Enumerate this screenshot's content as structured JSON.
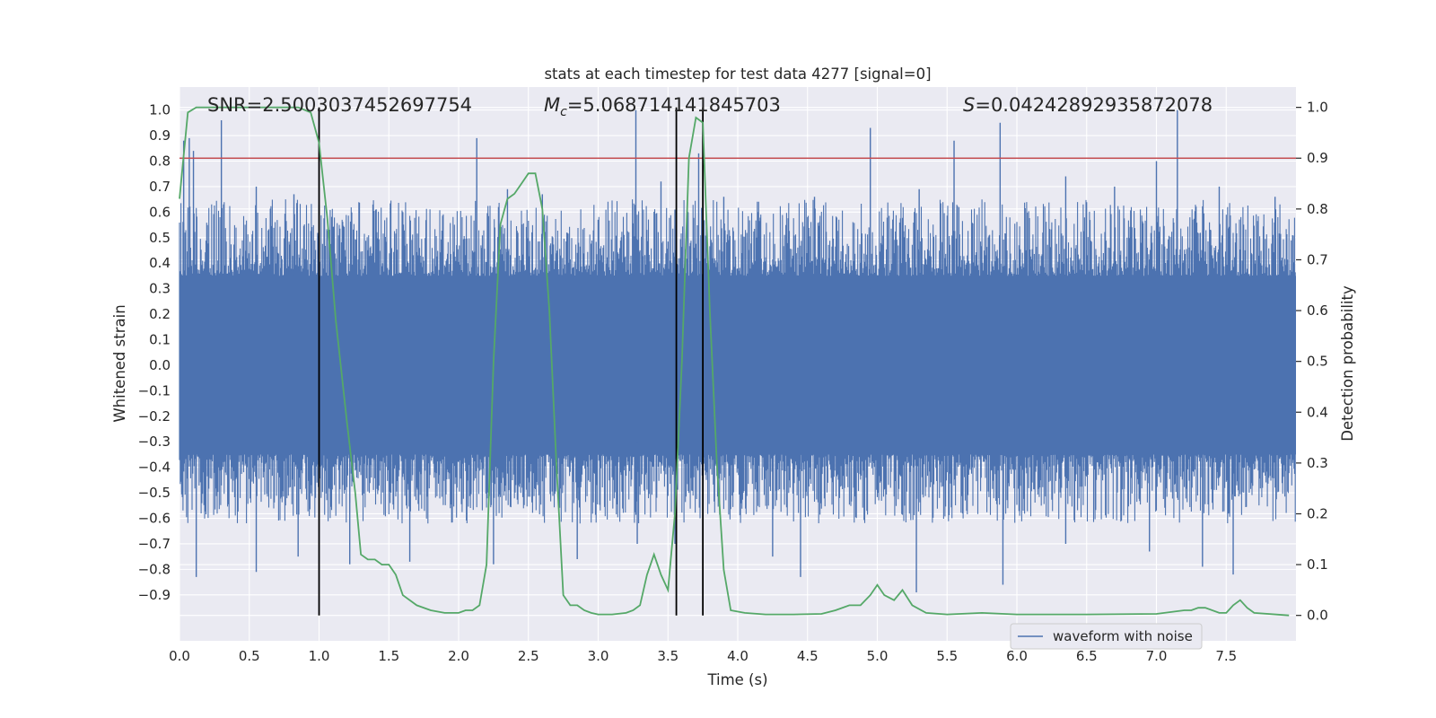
{
  "chart_data": {
    "type": "line",
    "title": "stats at each timestep for test data 4277 [signal=0]",
    "xlabel": "Time (s)",
    "ylabel_left": "Whitened strain",
    "ylabel_right": "Detection probability",
    "xlim": [
      0.0,
      8.0
    ],
    "ylim_left": [
      -1.08,
      1.09
    ],
    "ylim_right": [
      -0.05,
      1.04
    ],
    "x_ticks": [
      0.0,
      0.5,
      1.0,
      1.5,
      2.0,
      2.5,
      3.0,
      3.5,
      4.0,
      4.5,
      5.0,
      5.5,
      6.0,
      6.5,
      7.0,
      7.5
    ],
    "x_tick_labels": [
      "0.0",
      "0.5",
      "1.0",
      "1.5",
      "2.0",
      "2.5",
      "3.0",
      "3.5",
      "4.0",
      "4.5",
      "5.0",
      "5.5",
      "6.0",
      "6.5",
      "7.0",
      "7.5"
    ],
    "y_left_ticks": [
      -0.9,
      -0.8,
      -0.7,
      -0.6,
      -0.5,
      -0.4,
      -0.3,
      -0.2,
      -0.1,
      0.0,
      0.1,
      0.2,
      0.3,
      0.4,
      0.5,
      0.6,
      0.7,
      0.8,
      0.9,
      1.0
    ],
    "y_left_tick_labels": [
      "−0.9",
      "−0.8",
      "−0.7",
      "−0.6",
      "−0.5",
      "−0.4",
      "−0.3",
      "−0.2",
      "−0.1",
      "0.0",
      "0.1",
      "0.2",
      "0.3",
      "0.4",
      "0.5",
      "0.6",
      "0.7",
      "0.8",
      "0.9",
      "1.0"
    ],
    "y_right_ticks": [
      0.0,
      0.1,
      0.2,
      0.3,
      0.4,
      0.5,
      0.6,
      0.7,
      0.8,
      0.9,
      1.0
    ],
    "y_right_tick_labels": [
      "0.0",
      "0.1",
      "0.2",
      "0.3",
      "0.4",
      "0.5",
      "0.6",
      "0.7",
      "0.8",
      "0.9",
      "1.0"
    ],
    "grid": true,
    "legend_position": "bottom-right",
    "annotations": {
      "snr": "SNR=2.5003037452697754",
      "mc_symbol": "M",
      "mc_subscript": "c",
      "mc_value": "=5.068714141845703",
      "s_symbol": "S",
      "s_value": "=0.04242892935872078"
    },
    "threshold": {
      "axis": "right",
      "value": 0.9,
      "color": "#c44e52"
    },
    "vertical_markers": {
      "x": [
        1.0,
        3.56,
        3.75
      ],
      "color": "#000000"
    },
    "series": [
      {
        "name": "waveform with noise",
        "axis": "left",
        "color": "#4c72b0",
        "kind": "noise",
        "core_min": -0.35,
        "core_max": 0.35,
        "typical_max": 0.65,
        "typical_min": -0.62,
        "peaks": [
          [
            0.03,
            0.88
          ],
          [
            0.07,
            0.89
          ],
          [
            0.3,
            0.96
          ],
          [
            0.1,
            0.84
          ],
          [
            0.55,
            0.7
          ],
          [
            0.82,
            0.67
          ],
          [
            1.0,
            0.63
          ],
          [
            1.6,
            0.6
          ],
          [
            2.13,
            0.89
          ],
          [
            2.35,
            0.69
          ],
          [
            2.6,
            0.67
          ],
          [
            3.0,
            0.57
          ],
          [
            3.27,
            1.0
          ],
          [
            3.45,
            0.72
          ],
          [
            3.55,
            0.61
          ],
          [
            3.72,
            0.83
          ],
          [
            3.9,
            0.66
          ],
          [
            4.55,
            0.66
          ],
          [
            4.95,
            0.93
          ],
          [
            5.3,
            0.69
          ],
          [
            5.55,
            0.88
          ],
          [
            5.88,
            0.95
          ],
          [
            6.35,
            0.74
          ],
          [
            6.7,
            0.7
          ],
          [
            7.0,
            0.8
          ],
          [
            7.15,
            1.0
          ],
          [
            7.45,
            0.7
          ],
          [
            7.85,
            0.66
          ]
        ],
        "troughs": [
          [
            0.12,
            -0.83
          ],
          [
            0.55,
            -0.81
          ],
          [
            0.85,
            -0.75
          ],
          [
            1.22,
            -0.78
          ],
          [
            1.65,
            -0.77
          ],
          [
            2.25,
            -0.78
          ],
          [
            2.85,
            -0.76
          ],
          [
            3.28,
            -0.7
          ],
          [
            3.55,
            -0.7
          ],
          [
            4.25,
            -0.75
          ],
          [
            4.45,
            -0.83
          ],
          [
            5.28,
            -0.89
          ],
          [
            5.9,
            -0.86
          ],
          [
            6.35,
            -0.7
          ],
          [
            6.95,
            -0.73
          ],
          [
            7.33,
            -0.79
          ],
          [
            7.55,
            -0.82
          ]
        ]
      },
      {
        "name": "detection probability",
        "axis": "right",
        "color": "#55a868",
        "kind": "line",
        "x": [
          0.0,
          0.06,
          0.12,
          0.2,
          0.3,
          0.5,
          0.7,
          0.85,
          0.94,
          1.0,
          1.06,
          1.12,
          1.2,
          1.26,
          1.3,
          1.35,
          1.4,
          1.45,
          1.5,
          1.55,
          1.6,
          1.7,
          1.8,
          1.9,
          2.0,
          2.05,
          2.1,
          2.15,
          2.2,
          2.25,
          2.3,
          2.35,
          2.4,
          2.45,
          2.5,
          2.55,
          2.6,
          2.65,
          2.7,
          2.75,
          2.8,
          2.85,
          2.9,
          2.95,
          3.0,
          3.1,
          3.2,
          3.25,
          3.3,
          3.35,
          3.4,
          3.45,
          3.5,
          3.55,
          3.6,
          3.65,
          3.7,
          3.75,
          3.8,
          3.85,
          3.9,
          3.95,
          4.05,
          4.2,
          4.4,
          4.6,
          4.7,
          4.8,
          4.88,
          4.95,
          5.0,
          5.05,
          5.12,
          5.18,
          5.25,
          5.35,
          5.5,
          5.75,
          6.0,
          6.5,
          7.0,
          7.2,
          7.25,
          7.3,
          7.35,
          7.45,
          7.5,
          7.55,
          7.6,
          7.65,
          7.7,
          7.95
        ],
        "y": [
          0.82,
          0.99,
          1.0,
          1.0,
          1.0,
          1.0,
          1.0,
          1.0,
          0.99,
          0.93,
          0.78,
          0.58,
          0.38,
          0.24,
          0.12,
          0.11,
          0.11,
          0.1,
          0.1,
          0.08,
          0.04,
          0.02,
          0.01,
          0.005,
          0.005,
          0.01,
          0.01,
          0.02,
          0.1,
          0.5,
          0.77,
          0.82,
          0.83,
          0.85,
          0.87,
          0.87,
          0.8,
          0.6,
          0.3,
          0.04,
          0.02,
          0.02,
          0.01,
          0.005,
          0.002,
          0.002,
          0.005,
          0.01,
          0.02,
          0.08,
          0.12,
          0.08,
          0.05,
          0.2,
          0.5,
          0.9,
          0.98,
          0.97,
          0.6,
          0.3,
          0.09,
          0.01,
          0.005,
          0.002,
          0.002,
          0.003,
          0.01,
          0.02,
          0.02,
          0.04,
          0.06,
          0.04,
          0.03,
          0.05,
          0.02,
          0.005,
          0.002,
          0.005,
          0.002,
          0.002,
          0.003,
          0.01,
          0.01,
          0.015,
          0.015,
          0.005,
          0.005,
          0.02,
          0.03,
          0.015,
          0.005,
          0.0
        ]
      }
    ]
  }
}
